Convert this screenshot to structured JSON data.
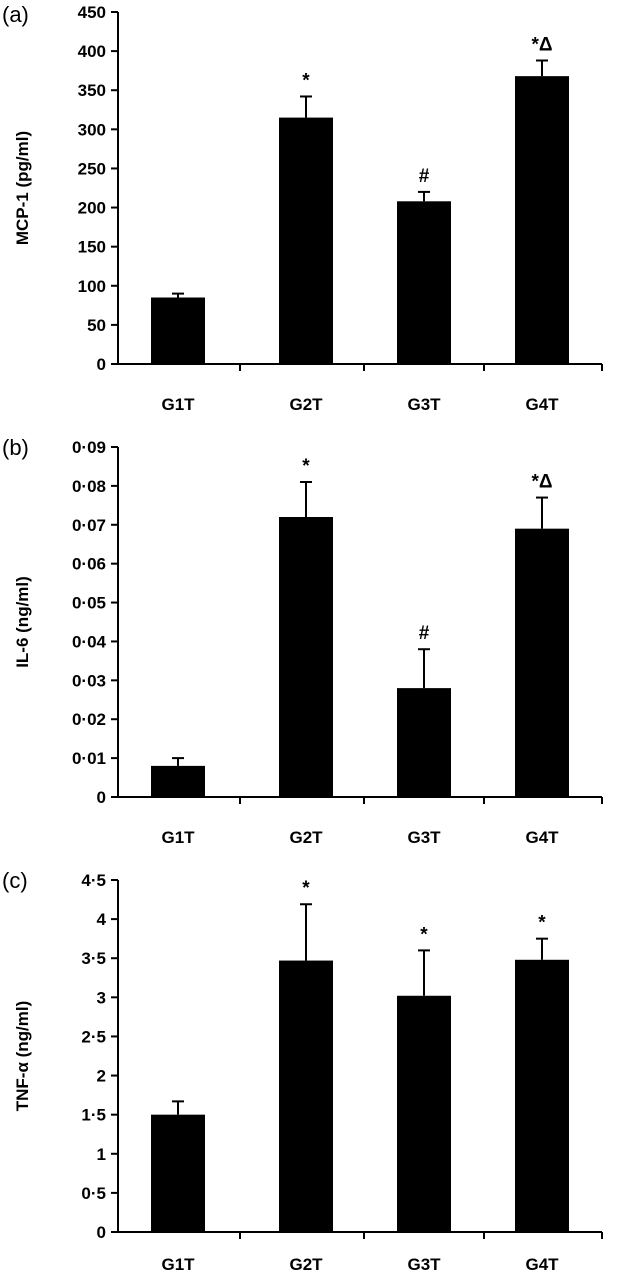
{
  "chart_data": [
    {
      "type": "bar",
      "panel_label": "(a)",
      "ylabel": "MCP-1 (pg/ml)",
      "xlabel": "",
      "categories": [
        "G1T",
        "G2T",
        "G3T",
        "G4T"
      ],
      "values": [
        85,
        315,
        208,
        368
      ],
      "errors": [
        5,
        27,
        12,
        20
      ],
      "annotations": [
        "",
        "*",
        "#",
        "*Δ"
      ],
      "ylim": [
        0,
        450
      ],
      "yticks": [
        0,
        50,
        100,
        150,
        200,
        250,
        300,
        350,
        400,
        450
      ],
      "ytick_labels": [
        "0",
        "50",
        "100",
        "150",
        "200",
        "250",
        "300",
        "350",
        "400",
        "450"
      ]
    },
    {
      "type": "bar",
      "panel_label": "(b)",
      "ylabel": "IL-6 (ng/ml)",
      "xlabel": "",
      "categories": [
        "G1T",
        "G2T",
        "G3T",
        "G4T"
      ],
      "values": [
        0.008,
        0.072,
        0.028,
        0.069
      ],
      "errors": [
        0.002,
        0.009,
        0.01,
        0.008
      ],
      "annotations": [
        "",
        "*",
        "#",
        "*Δ"
      ],
      "ylim": [
        0,
        0.09
      ],
      "yticks": [
        0,
        0.01,
        0.02,
        0.03,
        0.04,
        0.05,
        0.06,
        0.07,
        0.08,
        0.09
      ],
      "ytick_labels": [
        "0",
        "0·01",
        "0·02",
        "0·03",
        "0·04",
        "0·05",
        "0·06",
        "0·07",
        "0·08",
        "0·09"
      ]
    },
    {
      "type": "bar",
      "panel_label": "(c)",
      "ylabel": "TNF-α (ng/ml)",
      "xlabel": "",
      "categories": [
        "G1T",
        "G2T",
        "G3T",
        "G4T"
      ],
      "values": [
        1.5,
        3.47,
        3.02,
        3.48
      ],
      "errors": [
        0.17,
        0.72,
        0.58,
        0.27
      ],
      "annotations": [
        "",
        "*",
        "*",
        "*"
      ],
      "ylim": [
        0,
        4.5
      ],
      "yticks": [
        0,
        0.5,
        1,
        1.5,
        2,
        2.5,
        3,
        3.5,
        4,
        4.5
      ],
      "ytick_labels": [
        "0",
        "0·5",
        "1",
        "1·5",
        "2",
        "2·5",
        "3",
        "3·5",
        "4",
        "4·5"
      ]
    }
  ]
}
